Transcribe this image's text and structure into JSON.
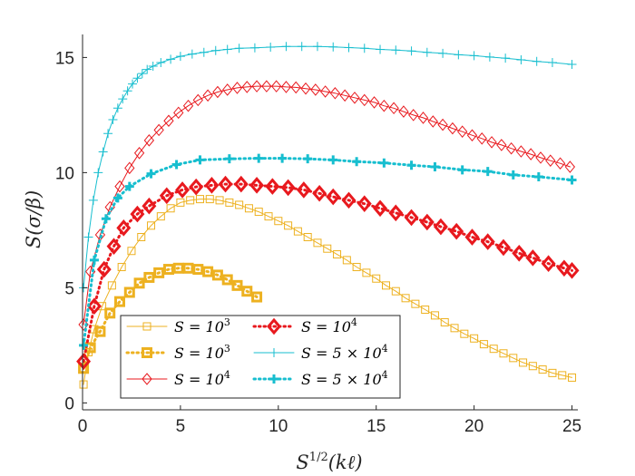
{
  "chart_data": {
    "type": "line",
    "title": "",
    "xlabel": "S^{1/2}(kℓ)",
    "ylabel": "S(σ/β)",
    "xlabel_parts": {
      "base": "S",
      "sup": "1/2",
      "rest": "(kℓ)"
    },
    "ylabel_text": "S(σ/β)",
    "xlim": [
      0,
      25.3
    ],
    "ylim": [
      -0.3,
      16
    ],
    "xticks": [
      0,
      5,
      10,
      15,
      20,
      25
    ],
    "yticks": [
      0,
      5,
      10,
      15
    ],
    "xtick_labels": [
      "0",
      "5",
      "10",
      "15",
      "20",
      "25"
    ],
    "ytick_labels": [
      "0",
      "5",
      "10",
      "15"
    ],
    "legend_position": "lower-left",
    "series": [
      {
        "name": "S = 10^3",
        "legend_main": "S = 10",
        "legend_sup": "3",
        "color": "#EDB120",
        "style": "solid",
        "marker": "square",
        "points": [
          [
            0.05,
            0.8
          ],
          [
            0.3,
            2.2
          ],
          [
            0.6,
            3.2
          ],
          [
            1.0,
            4.2
          ],
          [
            1.5,
            5.1
          ],
          [
            2.0,
            5.9
          ],
          [
            2.5,
            6.6
          ],
          [
            3.0,
            7.2
          ],
          [
            3.5,
            7.7
          ],
          [
            4.0,
            8.1
          ],
          [
            4.5,
            8.45
          ],
          [
            5.0,
            8.7
          ],
          [
            5.5,
            8.8
          ],
          [
            6.0,
            8.85
          ],
          [
            6.5,
            8.85
          ],
          [
            7.0,
            8.8
          ],
          [
            7.5,
            8.7
          ],
          [
            8.0,
            8.6
          ],
          [
            8.5,
            8.45
          ],
          [
            9.0,
            8.3
          ],
          [
            9.5,
            8.1
          ],
          [
            10.0,
            7.9
          ],
          [
            10.5,
            7.7
          ],
          [
            11.0,
            7.45
          ],
          [
            11.5,
            7.2
          ],
          [
            12.0,
            6.95
          ],
          [
            12.5,
            6.7
          ],
          [
            13.0,
            6.45
          ],
          [
            13.5,
            6.2
          ],
          [
            14.0,
            5.9
          ],
          [
            14.5,
            5.65
          ],
          [
            15.0,
            5.4
          ],
          [
            15.5,
            5.1
          ],
          [
            16.0,
            4.85
          ],
          [
            16.5,
            4.55
          ],
          [
            17.0,
            4.3
          ],
          [
            17.5,
            4.05
          ],
          [
            18.0,
            3.8
          ],
          [
            18.5,
            3.5
          ],
          [
            19.0,
            3.25
          ],
          [
            19.5,
            3.0
          ],
          [
            20.0,
            2.8
          ],
          [
            20.5,
            2.55
          ],
          [
            21.0,
            2.35
          ],
          [
            21.5,
            2.15
          ],
          [
            22.0,
            1.95
          ],
          [
            22.5,
            1.75
          ],
          [
            23.0,
            1.6
          ],
          [
            23.5,
            1.45
          ],
          [
            24.0,
            1.3
          ],
          [
            24.5,
            1.2
          ],
          [
            25.0,
            1.1
          ]
        ]
      },
      {
        "name": "S = 10^3",
        "legend_main": "S = 10",
        "legend_sup": "3",
        "color": "#EDB120",
        "style": "dotted",
        "marker": "square-bold",
        "points": [
          [
            0.05,
            1.5
          ],
          [
            0.4,
            2.4
          ],
          [
            0.9,
            3.1
          ],
          [
            1.4,
            3.9
          ],
          [
            1.9,
            4.4
          ],
          [
            2.4,
            4.8
          ],
          [
            2.9,
            5.2
          ],
          [
            3.4,
            5.45
          ],
          [
            3.9,
            5.65
          ],
          [
            4.4,
            5.8
          ],
          [
            4.9,
            5.85
          ],
          [
            5.4,
            5.85
          ],
          [
            5.9,
            5.8
          ],
          [
            6.4,
            5.7
          ],
          [
            6.9,
            5.55
          ],
          [
            7.4,
            5.35
          ],
          [
            7.9,
            5.1
          ],
          [
            8.4,
            4.85
          ],
          [
            8.9,
            4.6
          ]
        ]
      },
      {
        "name": "S = 10^4",
        "legend_main": "S = 10",
        "legend_sup": "4",
        "color": "#E8191E",
        "style": "solid",
        "marker": "diamond",
        "points": [
          [
            0.05,
            3.4
          ],
          [
            0.4,
            5.7
          ],
          [
            0.9,
            7.3
          ],
          [
            1.4,
            8.5
          ],
          [
            1.9,
            9.4
          ],
          [
            2.4,
            10.2
          ],
          [
            2.9,
            10.85
          ],
          [
            3.4,
            11.4
          ],
          [
            3.9,
            11.85
          ],
          [
            4.4,
            12.25
          ],
          [
            4.9,
            12.6
          ],
          [
            5.4,
            12.9
          ],
          [
            5.9,
            13.15
          ],
          [
            6.4,
            13.35
          ],
          [
            6.9,
            13.5
          ],
          [
            7.4,
            13.6
          ],
          [
            7.9,
            13.68
          ],
          [
            8.4,
            13.72
          ],
          [
            8.9,
            13.75
          ],
          [
            9.4,
            13.75
          ],
          [
            9.9,
            13.75
          ],
          [
            10.4,
            13.72
          ],
          [
            10.9,
            13.7
          ],
          [
            11.4,
            13.65
          ],
          [
            11.9,
            13.6
          ],
          [
            12.4,
            13.52
          ],
          [
            12.9,
            13.45
          ],
          [
            13.4,
            13.35
          ],
          [
            13.9,
            13.25
          ],
          [
            14.4,
            13.15
          ],
          [
            14.9,
            13.05
          ],
          [
            15.4,
            12.9
          ],
          [
            15.9,
            12.8
          ],
          [
            16.4,
            12.65
          ],
          [
            16.9,
            12.5
          ],
          [
            17.4,
            12.38
          ],
          [
            17.9,
            12.22
          ],
          [
            18.4,
            12.08
          ],
          [
            18.9,
            11.92
          ],
          [
            19.4,
            11.78
          ],
          [
            19.9,
            11.62
          ],
          [
            20.4,
            11.48
          ],
          [
            20.9,
            11.32
          ],
          [
            21.4,
            11.2
          ],
          [
            21.9,
            11.05
          ],
          [
            22.4,
            10.92
          ],
          [
            22.9,
            10.8
          ],
          [
            23.4,
            10.65
          ],
          [
            23.9,
            10.52
          ],
          [
            24.4,
            10.4
          ],
          [
            24.9,
            10.25
          ]
        ]
      },
      {
        "name": "S = 10^4",
        "legend_main": "S = 10",
        "legend_sup": "4",
        "color": "#E8191E",
        "style": "dotted",
        "marker": "diamond-bold",
        "points": [
          [
            0.05,
            1.8
          ],
          [
            0.6,
            4.2
          ],
          [
            1.1,
            5.8
          ],
          [
            1.6,
            6.8
          ],
          [
            2.1,
            7.6
          ],
          [
            2.8,
            8.2
          ],
          [
            3.4,
            8.55
          ],
          [
            4.3,
            9.0
          ],
          [
            5.1,
            9.25
          ],
          [
            5.8,
            9.38
          ],
          [
            6.6,
            9.45
          ],
          [
            7.3,
            9.5
          ],
          [
            8.1,
            9.5
          ],
          [
            8.9,
            9.45
          ],
          [
            9.7,
            9.4
          ],
          [
            10.5,
            9.35
          ],
          [
            11.3,
            9.25
          ],
          [
            12.1,
            9.1
          ],
          [
            12.8,
            8.95
          ],
          [
            13.6,
            8.8
          ],
          [
            14.4,
            8.65
          ],
          [
            15.2,
            8.45
          ],
          [
            16.0,
            8.25
          ],
          [
            16.8,
            8.05
          ],
          [
            17.6,
            7.85
          ],
          [
            18.3,
            7.65
          ],
          [
            19.1,
            7.45
          ],
          [
            19.9,
            7.2
          ],
          [
            20.7,
            7.0
          ],
          [
            21.5,
            6.75
          ],
          [
            22.3,
            6.5
          ],
          [
            23.0,
            6.3
          ],
          [
            23.8,
            6.05
          ],
          [
            24.6,
            5.85
          ],
          [
            25.0,
            5.75
          ]
        ]
      },
      {
        "name": "S = 5 × 10^4",
        "legend_main": "S = 5 × 10",
        "legend_sup": "4",
        "color": "#17BECF",
        "style": "solid",
        "marker": "plus",
        "points": [
          [
            0.05,
            5.0
          ],
          [
            0.3,
            7.2
          ],
          [
            0.55,
            8.8
          ],
          [
            0.8,
            10.0
          ],
          [
            1.05,
            10.9
          ],
          [
            1.3,
            11.7
          ],
          [
            1.55,
            12.3
          ],
          [
            1.8,
            12.8
          ],
          [
            2.05,
            13.2
          ],
          [
            2.3,
            13.55
          ],
          [
            2.55,
            13.85
          ],
          [
            2.8,
            14.1
          ],
          [
            3.05,
            14.3
          ],
          [
            3.3,
            14.48
          ],
          [
            3.6,
            14.62
          ],
          [
            4.0,
            14.78
          ],
          [
            4.5,
            14.92
          ],
          [
            5.0,
            15.05
          ],
          [
            5.6,
            15.15
          ],
          [
            6.2,
            15.22
          ],
          [
            6.8,
            15.3
          ],
          [
            7.4,
            15.35
          ],
          [
            8.0,
            15.4
          ],
          [
            8.8,
            15.42
          ],
          [
            9.6,
            15.45
          ],
          [
            10.4,
            15.48
          ],
          [
            11.2,
            15.48
          ],
          [
            12.0,
            15.48
          ],
          [
            12.8,
            15.46
          ],
          [
            13.6,
            15.43
          ],
          [
            14.4,
            15.4
          ],
          [
            15.2,
            15.35
          ],
          [
            16.0,
            15.32
          ],
          [
            16.8,
            15.28
          ],
          [
            17.6,
            15.22
          ],
          [
            18.4,
            15.18
          ],
          [
            19.2,
            15.12
          ],
          [
            20.0,
            15.08
          ],
          [
            20.8,
            15.02
          ],
          [
            21.6,
            14.97
          ],
          [
            22.4,
            14.9
          ],
          [
            23.2,
            14.83
          ],
          [
            24.0,
            14.78
          ],
          [
            25.0,
            14.7
          ]
        ]
      },
      {
        "name": "S = 5 × 10^4",
        "legend_main": "S = 5 × 10",
        "legend_sup": "4",
        "color": "#17BECF",
        "style": "dotted",
        "marker": "plus-bold",
        "points": [
          [
            0.05,
            2.5
          ],
          [
            0.6,
            6.2
          ],
          [
            1.2,
            8.0
          ],
          [
            1.8,
            8.9
          ],
          [
            2.4,
            9.4
          ],
          [
            3.5,
            9.95
          ],
          [
            4.8,
            10.35
          ],
          [
            6.0,
            10.55
          ],
          [
            7.5,
            10.6
          ],
          [
            9.0,
            10.62
          ],
          [
            10.2,
            10.62
          ],
          [
            11.5,
            10.6
          ],
          [
            12.8,
            10.55
          ],
          [
            14.0,
            10.48
          ],
          [
            15.4,
            10.42
          ],
          [
            16.8,
            10.32
          ],
          [
            18.0,
            10.25
          ],
          [
            19.4,
            10.12
          ],
          [
            20.7,
            10.05
          ],
          [
            22.0,
            9.9
          ],
          [
            23.3,
            9.82
          ],
          [
            25.0,
            9.68
          ]
        ]
      }
    ]
  }
}
